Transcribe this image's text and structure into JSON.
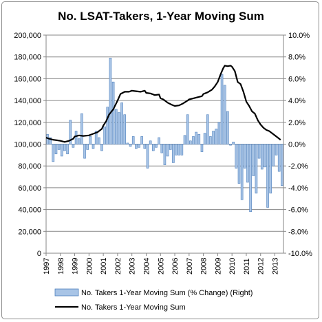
{
  "chart_data": {
    "type": "bar+line",
    "title": "No. LSAT-Takers, 1-Year Moving Sum",
    "x_ticks": [
      "1997",
      "1998",
      "1999",
      "2000",
      "2001",
      "2002",
      "2003",
      "2004",
      "2005",
      "2006",
      "2007",
      "2008",
      "2009",
      "2010",
      "2011",
      "2012",
      "2013"
    ],
    "y_left": {
      "ylim": [
        0,
        200000
      ],
      "ticks": [
        0,
        20000,
        40000,
        60000,
        80000,
        100000,
        120000,
        140000,
        160000,
        180000,
        200000
      ],
      "tick_labels": [
        "0",
        "20,000",
        "40,000",
        "60,000",
        "80,000",
        "100,000",
        "120,000",
        "140,000",
        "160,000",
        "180,000",
        "200,000"
      ]
    },
    "y_right": {
      "ylim": [
        -10,
        10
      ],
      "ticks": [
        -10,
        -8,
        -6,
        -4,
        -2,
        0,
        2,
        4,
        6,
        8,
        10
      ],
      "tick_labels": [
        "-10.0%",
        "-8.0%",
        "-6.0%",
        "-4.0%",
        "-2.0%",
        "0.0%",
        "2.0%",
        "4.0%",
        "6.0%",
        "8.0%",
        "10.0%"
      ]
    },
    "x_range": [
      1997,
      2013.6
    ],
    "legend_position": "bottom",
    "series": [
      {
        "name": "No. Takers 1-Year Moving Sum (% Change) (Right)",
        "kind": "bar",
        "axis": "right",
        "color": "#a8c4e6",
        "edge_color": "#4f81bd",
        "x": [
          1997.0,
          1997.2,
          1997.4,
          1997.6,
          1997.8,
          1998.0,
          1998.2,
          1998.4,
          1998.6,
          1998.8,
          1999.0,
          1999.2,
          1999.4,
          1999.6,
          1999.8,
          2000.0,
          2000.2,
          2000.4,
          2000.6,
          2000.8,
          2001.0,
          2001.2,
          2001.4,
          2001.6,
          2001.8,
          2002.0,
          2002.2,
          2002.4,
          2002.6,
          2002.8,
          2003.0,
          2003.2,
          2003.4,
          2003.6,
          2003.8,
          2004.0,
          2004.2,
          2004.4,
          2004.6,
          2004.8,
          2005.0,
          2005.2,
          2005.4,
          2005.6,
          2005.8,
          2006.0,
          2006.2,
          2006.4,
          2006.6,
          2006.8,
          2007.0,
          2007.2,
          2007.4,
          2007.6,
          2007.8,
          2008.0,
          2008.2,
          2008.4,
          2008.6,
          2008.8,
          2009.0,
          2009.2,
          2009.4,
          2009.6,
          2009.8,
          2010.0,
          2010.2,
          2010.4,
          2010.6,
          2010.8,
          2011.0,
          2011.2,
          2011.4,
          2011.6,
          2011.8,
          2012.0,
          2012.2,
          2012.4,
          2012.6,
          2012.8,
          2013.0,
          2013.2,
          2013.4
        ],
        "values": [
          0.9,
          0.6,
          -1.6,
          -0.9,
          -0.5,
          -1.1,
          -0.6,
          -0.9,
          2.2,
          -0.3,
          1.2,
          0.5,
          2.8,
          -1.3,
          -0.5,
          0.7,
          -0.4,
          1.2,
          0.6,
          -0.6,
          1.6,
          3.4,
          7.9,
          5.7,
          3.2,
          2.9,
          3.8,
          2.7,
          0.1,
          -0.2,
          0.7,
          -0.4,
          -0.3,
          0.7,
          -0.4,
          -2.2,
          0.3,
          -0.6,
          -0.3,
          0.6,
          -0.8,
          -1.9,
          -1.1,
          -0.5,
          -1.7,
          -1.0,
          -1.0,
          -1.0,
          0.8,
          2.7,
          0.3,
          0.7,
          1.1,
          0.9,
          -0.7,
          1.0,
          2.7,
          0.7,
          1.2,
          1.4,
          2.0,
          6.4,
          5.4,
          3.0,
          -0.1,
          0.2,
          -2.2,
          -3.6,
          -5.1,
          -2.2,
          -3.5,
          -6.2,
          -2.9,
          -4.5,
          -1.3,
          -2.3,
          -2.1,
          -5.8,
          -4.5,
          -2.0,
          -1.0,
          -2.5,
          -3.8
        ]
      },
      {
        "name": "No. Takers 1-Year Moving Sum",
        "kind": "line",
        "axis": "left",
        "color": "#000000",
        "x": [
          1997.0,
          1997.2,
          1997.5,
          1997.8,
          1998.0,
          1998.3,
          1998.6,
          1998.9,
          1999.0,
          1999.3,
          1999.6,
          2000.0,
          2000.3,
          2000.6,
          2000.9,
          2001.0,
          2001.2,
          2001.4,
          2001.7,
          2002.0,
          2002.2,
          2002.5,
          2002.8,
          2003.0,
          2003.3,
          2003.6,
          2003.9,
          2004.0,
          2004.3,
          2004.6,
          2004.9,
          2005.0,
          2005.2,
          2005.5,
          2005.8,
          2006.0,
          2006.3,
          2006.6,
          2006.9,
          2007.0,
          2007.3,
          2007.6,
          2007.9,
          2008.0,
          2008.3,
          2008.6,
          2008.8,
          2009.0,
          2009.2,
          2009.4,
          2009.5,
          2009.7,
          2009.9,
          2010.0,
          2010.2,
          2010.4,
          2010.6,
          2010.8,
          2011.0,
          2011.2,
          2011.4,
          2011.6,
          2011.8,
          2012.0,
          2012.2,
          2012.4,
          2012.6,
          2012.8,
          2013.0,
          2013.2,
          2013.4
        ],
        "values": [
          106000,
          105000,
          104000,
          103500,
          103000,
          102000,
          103000,
          105000,
          107000,
          108000,
          107500,
          108000,
          109500,
          111000,
          114000,
          117000,
          121000,
          127000,
          132000,
          140000,
          146000,
          148000,
          148000,
          149000,
          148500,
          148000,
          149000,
          147000,
          146500,
          145000,
          145500,
          142000,
          141000,
          138000,
          136000,
          135000,
          135500,
          137500,
          140000,
          141000,
          142000,
          143000,
          144000,
          146000,
          147500,
          150000,
          153000,
          157000,
          164000,
          170000,
          172000,
          171500,
          172000,
          171000,
          167000,
          157000,
          155000,
          148000,
          139000,
          135000,
          130000,
          128000,
          122000,
          118000,
          115000,
          113000,
          112000,
          110000,
          108000,
          106000,
          104000
        ]
      }
    ]
  }
}
